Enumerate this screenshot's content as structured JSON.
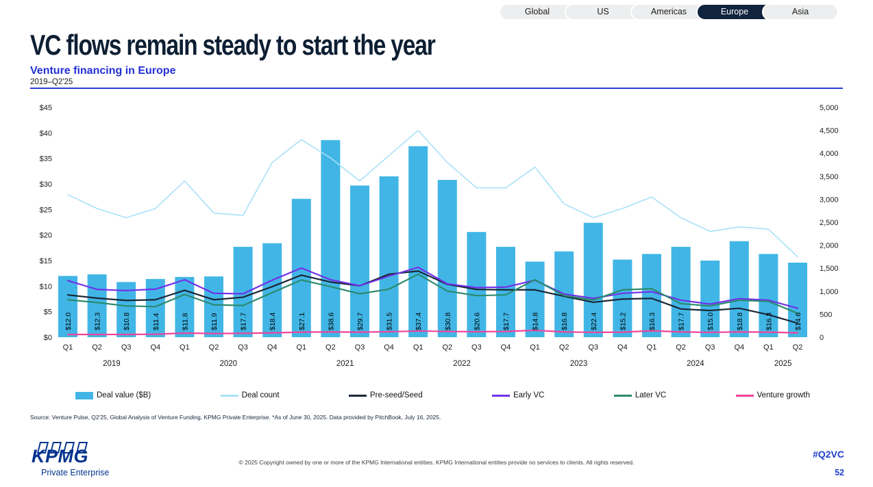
{
  "tabs": {
    "items": [
      {
        "label": "Global",
        "active": false
      },
      {
        "label": "US",
        "active": false
      },
      {
        "label": "Americas",
        "active": false
      },
      {
        "label": "Europe",
        "active": true
      },
      {
        "label": "Asia",
        "active": false
      }
    ]
  },
  "header": {
    "title": "VC flows remain steady to start the year",
    "subtitle": "Venture financing in Europe",
    "period": "2019–Q2'25"
  },
  "chart_data": {
    "type": "bar+line combo",
    "quarters": [
      "Q1",
      "Q2",
      "Q3",
      "Q4",
      "Q1",
      "Q2",
      "Q3",
      "Q4",
      "Q1",
      "Q2",
      "Q3",
      "Q4",
      "Q1",
      "Q2",
      "Q3",
      "Q4",
      "Q1",
      "Q2",
      "Q3",
      "Q4",
      "Q1",
      "Q2",
      "Q3",
      "Q4",
      "Q1",
      "Q2"
    ],
    "year_groups": [
      {
        "label": "2019",
        "count": 4
      },
      {
        "label": "2020",
        "count": 4
      },
      {
        "label": "2021",
        "count": 4
      },
      {
        "label": "2022",
        "count": 4
      },
      {
        "label": "2023",
        "count": 4
      },
      {
        "label": "2024",
        "count": 4
      },
      {
        "label": "2025",
        "count": 2
      }
    ],
    "left_axis": {
      "title": "Deal value ($B)",
      "min": 0,
      "max": 45,
      "step": 5,
      "tick_labels": [
        "$0",
        "$5",
        "$10",
        "$15",
        "$20",
        "$25",
        "$30",
        "$35",
        "$40",
        "$45"
      ]
    },
    "right_axis": {
      "title": "Deal count",
      "min": 0,
      "max": 5000,
      "step": 500,
      "tick_labels": [
        "0",
        "500",
        "1,000",
        "1,500",
        "2,000",
        "2,500",
        "3,000",
        "3,500",
        "4,000",
        "4,500",
        "5,000"
      ]
    },
    "bar_series": {
      "name": "Deal value ($B)",
      "axis": "left",
      "color": "#41B6E6",
      "values": [
        12.0,
        12.3,
        10.8,
        11.4,
        11.8,
        11.9,
        17.7,
        18.4,
        27.1,
        38.6,
        29.7,
        31.5,
        37.4,
        30.8,
        20.6,
        17.7,
        14.8,
        16.8,
        22.4,
        15.2,
        16.3,
        17.7,
        15.0,
        18.8,
        16.3,
        14.6
      ],
      "labels": [
        "$12.0",
        "$12.3",
        "$10.8",
        "$11.4",
        "$11.8",
        "$11.9",
        "$17.7",
        "$18.4",
        "$27.1",
        "$38.6",
        "$29.7",
        "$31.5",
        "$37.4",
        "$30.8",
        "$20.6",
        "$17.7",
        "$14.8",
        "$16.8",
        "$22.4",
        "$15.2",
        "$16.3",
        "$17.7",
        "$15.0",
        "$18.8",
        "$16.3",
        "$14.6"
      ]
    },
    "line_series": [
      {
        "name": "Deal count",
        "axis": "right",
        "color": "#A8E1F8",
        "width": 1.6,
        "values": [
          3100,
          2800,
          2600,
          2800,
          3400,
          2700,
          2650,
          3800,
          4300,
          3900,
          3400,
          3950,
          4500,
          3800,
          3250,
          3250,
          3700,
          2900,
          2600,
          2800,
          3050,
          2600,
          2300,
          2400,
          2350,
          1750
        ],
        "estimated": true
      },
      {
        "name": "Pre-seed/Seed",
        "axis": "right",
        "color": "#1A2736",
        "width": 2.2,
        "values": [
          920,
          850,
          800,
          815,
          1020,
          815,
          870,
          1100,
          1350,
          1200,
          1120,
          1370,
          1440,
          1150,
          1040,
          1030,
          1030,
          890,
          760,
          830,
          845,
          615,
          580,
          630,
          490,
          305
        ],
        "estimated": true
      },
      {
        "name": "Early VC",
        "axis": "right",
        "color": "#7230E8",
        "width": 2.2,
        "values": [
          1230,
          1040,
          1015,
          1045,
          1250,
          955,
          945,
          1240,
          1505,
          1250,
          1120,
          1330,
          1520,
          1160,
          1080,
          1090,
          1240,
          940,
          845,
          955,
          990,
          805,
          720,
          840,
          805,
          630
        ],
        "estimated": true
      },
      {
        "name": "Later VC",
        "axis": "right",
        "color": "#2B8A6E",
        "width": 2.2,
        "values": [
          815,
          755,
          680,
          665,
          930,
          705,
          690,
          970,
          1245,
          1100,
          945,
          1045,
          1370,
          1005,
          905,
          920,
          1250,
          905,
          810,
          1030,
          1055,
          730,
          680,
          805,
          780,
          520
        ],
        "estimated": true
      },
      {
        "name": "Venture growth",
        "axis": "right",
        "color": "#F0439B",
        "width": 2.2,
        "values": [
          60,
          60,
          60,
          65,
          90,
          80,
          85,
          95,
          110,
          115,
          110,
          120,
          135,
          125,
          120,
          125,
          150,
          115,
          105,
          110,
          140,
          115,
          105,
          115,
          110,
          95
        ],
        "estimated": true
      }
    ]
  },
  "legend": {
    "items": [
      {
        "label": "Deal value ($B)",
        "color": "#41B6E6",
        "swatch": "bar"
      },
      {
        "label": "Deal count",
        "color": "#A8E1F8",
        "swatch": "line"
      },
      {
        "label": "Pre-seed/Seed",
        "color": "#1A2736",
        "swatch": "line"
      },
      {
        "label": "Early VC",
        "color": "#7230E8",
        "swatch": "line"
      },
      {
        "label": "Later VC",
        "color": "#2B8A6E",
        "swatch": "line"
      },
      {
        "label": "Venture growth",
        "color": "#F0439B",
        "swatch": "line"
      }
    ]
  },
  "source_note": "Source: Venture Pulse, Q2'25, Global Analysis of Venture Funding, KPMG Private Enterprise. *As of June 30, 2025. Data provided by PitchBook, July 16, 2025.",
  "footer": {
    "logo_text": "KPMG",
    "logo_subtext": "Private Enterprise",
    "copyright": "© 2025 Copyright owned by one or more of the KPMG International entities. KPMG International entities provide no services to clients. All rights reserved.",
    "hashtag": "#Q2VC",
    "page_number": "52"
  }
}
